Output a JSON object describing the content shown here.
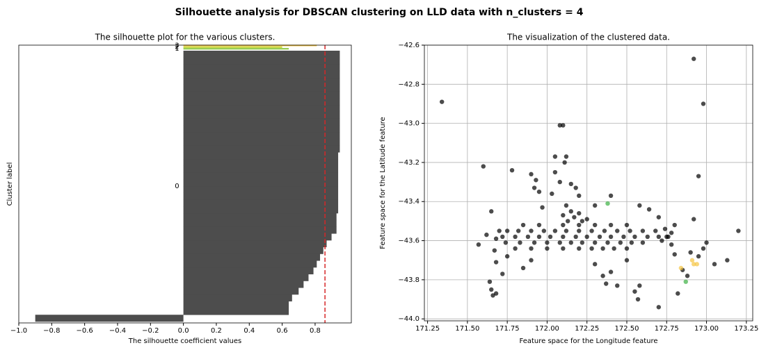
{
  "title": "Silhouette analysis for DBSCAN clustering on LLD data with n_clusters = 4",
  "chart_data": [
    {
      "type": "silhouette",
      "title": "The silhouette plot for the various clusters.",
      "xlabel": "The silhouette coefficient values",
      "ylabel": "Cluster label",
      "xlim": [
        -1.0,
        1.02
      ],
      "xticks": [
        {
          "value": -1.0,
          "label": "−1.0"
        },
        {
          "value": -0.8,
          "label": "−0.8"
        },
        {
          "value": -0.6,
          "label": "−0.6"
        },
        {
          "value": -0.4,
          "label": "−0.4"
        },
        {
          "value": -0.2,
          "label": "−0.2"
        },
        {
          "value": 0.0,
          "label": "0.0"
        },
        0.2,
        0.4,
        0.6,
        0.8
      ],
      "avg_score": 0.86,
      "avg_color": "#d62728",
      "clusters": [
        {
          "name": "0",
          "color": "#4d4d4d",
          "values": [
            -0.9,
            0.64,
            0.64,
            0.66,
            0.7,
            0.73,
            0.76,
            0.79,
            0.81,
            0.83,
            0.85,
            0.87,
            0.9,
            0.93,
            0.93,
            0.93,
            0.94,
            0.94,
            0.94,
            0.94,
            0.94,
            0.94,
            0.94,
            0.94,
            0.94,
            0.95,
            0.95,
            0.95,
            0.95,
            0.95,
            0.95,
            0.95,
            0.95,
            0.95,
            0.95,
            0.95,
            0.95,
            0.95,
            0.95,
            0.95
          ]
        },
        {
          "name": "1",
          "color": "#8cc63f",
          "values": [
            0.64
          ]
        },
        {
          "name": "2",
          "color": "#c8d83c",
          "values": [
            0.6
          ]
        },
        {
          "name": "3",
          "color": "#f5c542",
          "values": [
            0.81
          ]
        }
      ]
    },
    {
      "type": "scatter",
      "title": "The visualization of the clustered data.",
      "xlabel": "Feature space for the Longitude feature",
      "ylabel": "Feature space for the Latitude feature",
      "xlim": [
        171.23,
        173.29
      ],
      "ylim": [
        -44.01,
        -42.6
      ],
      "grid": true,
      "xticks": [
        171.25,
        {
          "value": 171.5,
          "label": "171.50"
        },
        171.75,
        {
          "value": 172.0,
          "label": "172.00"
        },
        172.25,
        {
          "value": 172.5,
          "label": "172.50"
        },
        172.75,
        {
          "value": 173.0,
          "label": "173.00"
        },
        173.25
      ],
      "yticks": [
        {
          "value": -42.6,
          "label": "−42.6"
        },
        {
          "value": -42.8,
          "label": "−42.8"
        },
        {
          "value": -43.0,
          "label": "−43.0"
        },
        {
          "value": -43.2,
          "label": "−43.2"
        },
        {
          "value": -43.4,
          "label": "−43.4"
        },
        {
          "value": -43.6,
          "label": "−43.6"
        },
        {
          "value": -43.8,
          "label": "−43.8"
        },
        {
          "value": -44.0,
          "label": "−44.0"
        }
      ],
      "series": [
        {
          "color": "#000000",
          "x": [
            171.34,
            172.92,
            172.98,
            172.08,
            172.1,
            171.6,
            171.78,
            171.9,
            171.93,
            171.92,
            171.95,
            172.05,
            172.12,
            172.11,
            172.05,
            172.08,
            172.15,
            172.03,
            172.2,
            172.18,
            171.97,
            172.3,
            172.4,
            172.58,
            172.64,
            172.7,
            172.74,
            172.8,
            172.92,
            172.95,
            173.2,
            171.65,
            171.57,
            171.67,
            171.68,
            171.75,
            171.72,
            171.64,
            171.65,
            171.66,
            171.68,
            171.85,
            171.9,
            172.3,
            172.35,
            172.37,
            172.4,
            172.44,
            172.5,
            172.55,
            172.57,
            172.58,
            172.7,
            172.82,
            172.85,
            172.88,
            172.95,
            173.0,
            172.98,
            173.05,
            173.13,
            172.9,
            172.78,
            172.76,
            172.8,
            172.72,
            171.75,
            171.82,
            171.9,
            171.98,
            172.05,
            172.12,
            172.2,
            172.28,
            172.36,
            172.44,
            172.52,
            172.6,
            172.68,
            171.72,
            171.8,
            171.88,
            171.95,
            172.02,
            172.1,
            172.18,
            172.25,
            172.33,
            172.4,
            172.48,
            172.55,
            172.63,
            172.7,
            171.74,
            171.83,
            171.92,
            172.0,
            172.08,
            172.15,
            172.22,
            172.3,
            172.38,
            172.46,
            172.53,
            172.6,
            171.8,
            171.9,
            172.0,
            172.1,
            172.2,
            172.28,
            172.35,
            172.42,
            172.5,
            171.85,
            171.95,
            172.1,
            172.2,
            172.3,
            172.4,
            172.5,
            172.12,
            172.15,
            172.17,
            172.13,
            172.2,
            172.22,
            172.25,
            172.1,
            171.62,
            171.68,
            171.7,
            172.75,
            172.78
          ],
          "y": [
            -42.89,
            -42.67,
            -42.9,
            -43.01,
            -43.01,
            -43.22,
            -43.24,
            -43.26,
            -43.29,
            -43.33,
            -43.35,
            -43.17,
            -43.17,
            -43.2,
            -43.25,
            -43.3,
            -43.31,
            -43.36,
            -43.37,
            -43.33,
            -43.43,
            -43.42,
            -43.37,
            -43.42,
            -43.44,
            -43.48,
            -43.54,
            -43.52,
            -43.49,
            -43.27,
            -43.55,
            -43.45,
            -43.62,
            -43.65,
            -43.71,
            -43.68,
            -43.77,
            -43.81,
            -43.85,
            -43.88,
            -43.87,
            -43.74,
            -43.7,
            -43.72,
            -43.78,
            -43.82,
            -43.76,
            -43.83,
            -43.7,
            -43.86,
            -43.9,
            -43.83,
            -43.94,
            -43.87,
            -43.75,
            -43.78,
            -43.68,
            -43.61,
            -43.64,
            -43.72,
            -43.7,
            -43.66,
            -43.62,
            -43.58,
            -43.67,
            -43.6,
            -43.55,
            -43.55,
            -43.55,
            -43.55,
            -43.55,
            -43.55,
            -43.55,
            -43.55,
            -43.55,
            -43.55,
            -43.55,
            -43.55,
            -43.55,
            -43.58,
            -43.58,
            -43.58,
            -43.58,
            -43.58,
            -43.58,
            -43.58,
            -43.58,
            -43.58,
            -43.58,
            -43.58,
            -43.58,
            -43.58,
            -43.58,
            -43.61,
            -43.61,
            -43.61,
            -43.61,
            -43.61,
            -43.61,
            -43.61,
            -43.61,
            -43.61,
            -43.61,
            -43.61,
            -43.61,
            -43.64,
            -43.64,
            -43.64,
            -43.64,
            -43.64,
            -43.64,
            -43.64,
            -43.64,
            -43.64,
            -43.52,
            -43.52,
            -43.52,
            -43.52,
            -43.52,
            -43.52,
            -43.52,
            -43.42,
            -43.45,
            -43.48,
            -43.5,
            -43.46,
            -43.5,
            -43.49,
            -43.47,
            -43.57,
            -43.59,
            -43.55,
            -43.58,
            -43.56
          ]
        },
        {
          "color": "#3cb043",
          "x": [
            172.38,
            172.87
          ],
          "y": [
            -43.41,
            -43.81
          ]
        },
        {
          "color": "#f5c542",
          "x": [
            172.84,
            172.92,
            172.94,
            172.91
          ],
          "y": [
            -43.74,
            -43.72,
            -43.72,
            -43.7
          ]
        }
      ]
    }
  ]
}
